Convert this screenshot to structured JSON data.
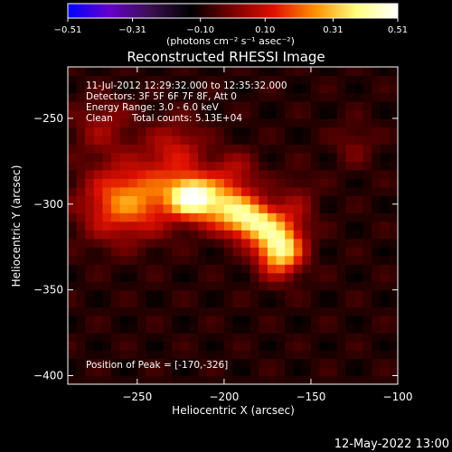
{
  "chart_data": {
    "type": "heatmap",
    "title": "Reconstructed RHESSI Image",
    "xlabel": "Heliocentric X (arcsec)",
    "ylabel": "Heliocentric Y (arcsec)",
    "xlim": [
      -290,
      -100
    ],
    "ylim": [
      -405,
      -220
    ],
    "xticks": [
      -250,
      -200,
      -150,
      -100
    ],
    "xtick_labels": [
      "−250",
      "−200",
      "−150",
      "−100"
    ],
    "yticks": [
      -250,
      -300,
      -350,
      -400
    ],
    "ytick_labels": [
      "−250",
      "−300",
      "−350",
      "−400"
    ],
    "colorbar": {
      "min": -0.51,
      "max": 0.51,
      "ticks": [
        -0.51,
        -0.31,
        -0.1,
        0.1,
        0.31,
        0.51
      ],
      "tick_labels": [
        "−0.51",
        "−0.31",
        "−0.10",
        "0.10",
        "0.31",
        "0.51"
      ],
      "unit_label": "(photons cm⁻² s⁻¹ asec⁻²)",
      "colors": [
        "#0000ff",
        "#6600cc",
        "#3a1050",
        "#000000",
        "#7a0000",
        "#e01000",
        "#ff9000",
        "#ffff80",
        "#ffffff"
      ]
    },
    "background_value": -0.09,
    "sources": [
      {
        "x": -219,
        "y": -295,
        "peak": 0.49,
        "sx": 9,
        "sy": 8
      },
      {
        "x": -168,
        "y": -326,
        "peak": 0.51,
        "sx": 9,
        "sy": 10
      },
      {
        "x": -183,
        "y": -310,
        "peak": 0.42,
        "sx": 11,
        "sy": 8
      },
      {
        "x": -200,
        "y": -300,
        "peak": 0.36,
        "sx": 12,
        "sy": 9
      },
      {
        "x": -245,
        "y": -296,
        "peak": 0.25,
        "sx": 16,
        "sy": 14
      },
      {
        "x": -265,
        "y": -300,
        "peak": 0.19,
        "sx": 14,
        "sy": 15
      },
      {
        "x": -228,
        "y": -268,
        "peak": 0.17,
        "sx": 12,
        "sy": 12
      },
      {
        "x": -195,
        "y": -280,
        "peak": 0.14,
        "sx": 10,
        "sy": 8
      },
      {
        "x": -270,
        "y": -255,
        "peak": 0.12,
        "sx": 12,
        "sy": 12
      },
      {
        "x": -158,
        "y": -300,
        "peak": 0.1,
        "sx": 8,
        "sy": 12
      },
      {
        "x": -125,
        "y": -265,
        "peak": 0.08,
        "sx": 8,
        "sy": 9
      }
    ],
    "annotations": {
      "time_range": "11-Jul-2012 12:29:32.000 to 12:35:32.000",
      "detectors": "Detectors: 3F 5F 6F 7F 8F, Att 0",
      "energy": "Energy Range: 3.0 - 6.0 keV",
      "clean_label": "Clean",
      "total_counts": "Total counts: 5.13E+04",
      "peak_position": "Position of Peak = [-170,-326]"
    },
    "footer_date": "12-May-2022 13:00"
  }
}
